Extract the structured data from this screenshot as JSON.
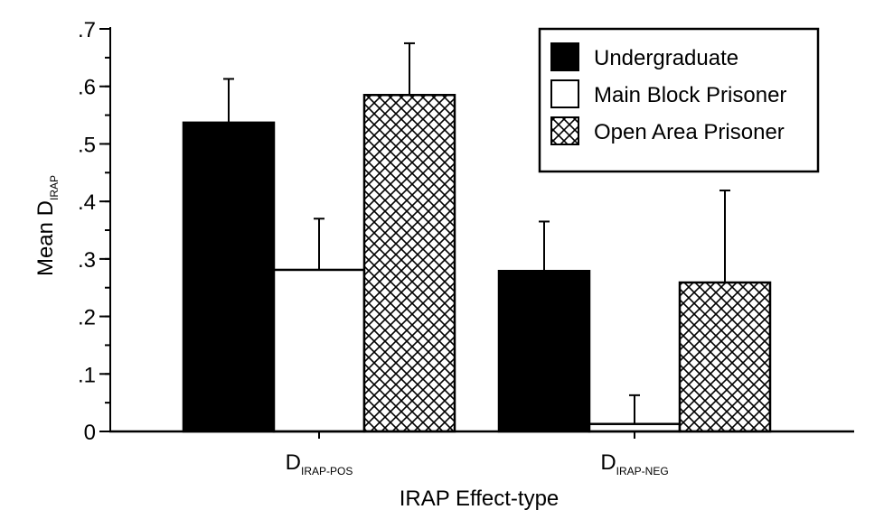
{
  "chart_data": {
    "type": "bar",
    "title": "",
    "xlabel": "IRAP Effect-type",
    "ylabel": {
      "main": "Mean D",
      "sub": "IRAP"
    },
    "ylim": [
      0,
      0.7
    ],
    "yticks": [
      {
        "value": 0,
        "label": "0"
      },
      {
        "value": 0.1,
        "label": ".1"
      },
      {
        "value": 0.2,
        "label": ".2"
      },
      {
        "value": 0.3,
        "label": ".3"
      },
      {
        "value": 0.4,
        "label": ".4"
      },
      {
        "value": 0.5,
        "label": ".5"
      },
      {
        "value": 0.6,
        "label": ".6"
      },
      {
        "value": 0.7,
        "label": ".7"
      }
    ],
    "categories": [
      {
        "main": "D",
        "sub": "IRAP-POS"
      },
      {
        "main": "D",
        "sub": "IRAP-NEG"
      }
    ],
    "series": [
      {
        "name": "Undergraduate",
        "pattern": "solid",
        "color": "#000000",
        "values": [
          0.537,
          0.279
        ],
        "errors": [
          0.076,
          0.086
        ]
      },
      {
        "name": "Main Block Prisoner",
        "pattern": "empty",
        "color": "#ffffff",
        "values": [
          0.281,
          0.013
        ],
        "errors": [
          0.089,
          0.05
        ]
      },
      {
        "name": "Open Area Prisoner",
        "pattern": "crosshatch",
        "color": "#000000",
        "values": [
          0.585,
          0.259
        ],
        "errors": [
          0.09,
          0.16
        ]
      }
    ],
    "legend": {
      "position": "top-right"
    },
    "grid": false
  }
}
